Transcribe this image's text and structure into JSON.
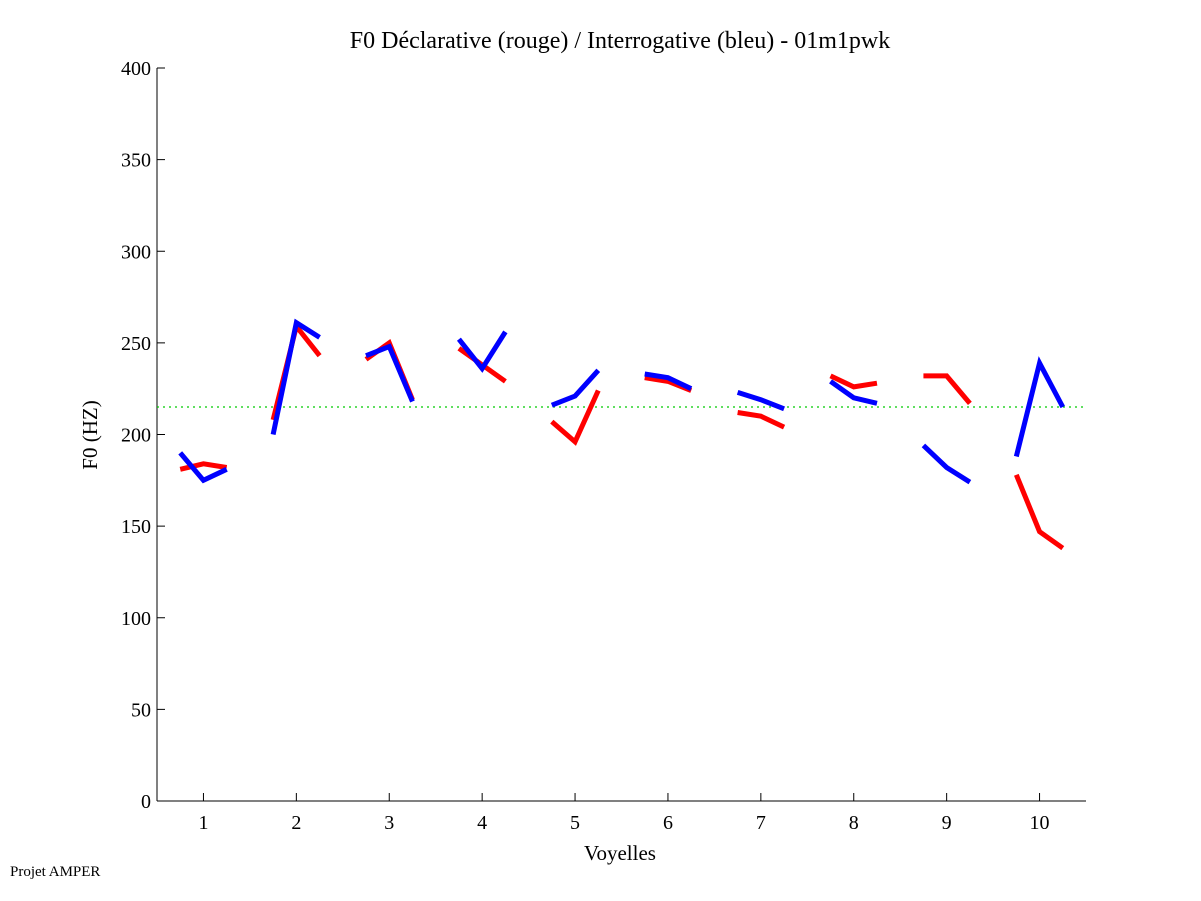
{
  "chart_data": {
    "type": "line",
    "title": "F0 Déclarative (rouge) / Interrogative (bleu) - 01m1pwk",
    "xlabel": "Voyelles",
    "ylabel": "F0 (HZ)",
    "ylim": [
      0,
      400
    ],
    "xlim": [
      0.5,
      10.5
    ],
    "yticks": [
      0,
      50,
      100,
      150,
      200,
      250,
      300,
      350,
      400
    ],
    "xticks": [
      1,
      2,
      3,
      4,
      5,
      6,
      7,
      8,
      9,
      10
    ],
    "reference_line": {
      "value": 215,
      "color": "#00cc00",
      "style": "dotted"
    },
    "series": [
      {
        "name": "Déclarative",
        "color": "#ff0000",
        "segments": [
          [
            181,
            184,
            182
          ],
          [
            208,
            259,
            243
          ],
          [
            241,
            250,
            219
          ],
          [
            247,
            238,
            229
          ],
          [
            207,
            196,
            224
          ],
          [
            231,
            229,
            224
          ],
          [
            212,
            210,
            204
          ],
          [
            232,
            226,
            228
          ],
          [
            232,
            232,
            217
          ],
          [
            178,
            147,
            138
          ]
        ]
      },
      {
        "name": "Interrogative",
        "color": "#0000ff",
        "segments": [
          [
            190,
            175,
            181
          ],
          [
            200,
            261,
            253
          ],
          [
            243,
            248,
            218
          ],
          [
            252,
            236,
            256
          ],
          [
            216,
            221,
            235
          ],
          [
            233,
            231,
            225
          ],
          [
            223,
            219,
            214
          ],
          [
            229,
            220,
            217
          ],
          [
            194,
            182,
            174
          ],
          [
            188,
            239,
            215
          ]
        ]
      }
    ]
  },
  "footer": "Projet AMPER"
}
